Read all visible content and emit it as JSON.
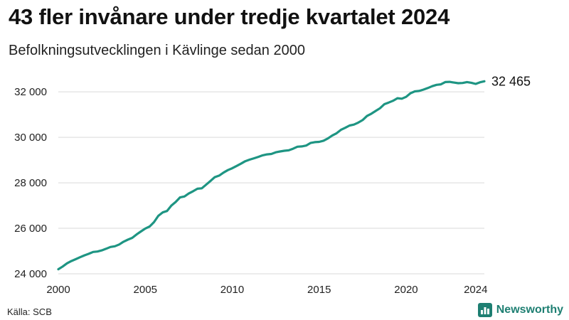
{
  "header": {
    "title": "43 fler invånare under tredje kvartalet 2024",
    "subtitle": "Befolkningsutvecklingen i Kävlinge sedan 2000"
  },
  "footer": {
    "source": "Källa: SCB",
    "brand": "Newsworthy"
  },
  "colors": {
    "line": "#1e9583",
    "grid": "#d9d9d9",
    "brand": "#1e7f72"
  },
  "chart_data": {
    "type": "line",
    "title": "43 fler invånare under tredje kvartalet 2024",
    "subtitle": "Befolkningsutvecklingen i Kävlinge sedan 2000",
    "xlabel": "",
    "ylabel": "",
    "xlim": [
      2000,
      2024.5
    ],
    "ylim": [
      24000,
      32600
    ],
    "grid": "horizontal",
    "x_ticks": [
      2000,
      2005,
      2010,
      2015,
      2020,
      2024
    ],
    "y_ticks": [
      24000,
      26000,
      28000,
      30000,
      32000
    ],
    "y_tick_labels": [
      "24 000",
      "26 000",
      "28 000",
      "30 000",
      "32 000"
    ],
    "end_label": "32 465",
    "series": [
      {
        "x": [
          2000.0,
          2000.25,
          2000.5,
          2000.75,
          2001.0,
          2001.25,
          2001.5,
          2001.75,
          2002.0,
          2002.25,
          2002.5,
          2002.75,
          2003.0,
          2003.25,
          2003.5,
          2003.75,
          2004.0,
          2004.25,
          2004.5,
          2004.75,
          2005.0,
          2005.25,
          2005.5,
          2005.75,
          2006.0,
          2006.25,
          2006.5,
          2006.75,
          2007.0,
          2007.25,
          2007.5,
          2007.75,
          2008.0,
          2008.25,
          2008.5,
          2008.75,
          2009.0,
          2009.25,
          2009.5,
          2009.75,
          2010.0,
          2010.25,
          2010.5,
          2010.75,
          2011.0,
          2011.25,
          2011.5,
          2011.75,
          2012.0,
          2012.25,
          2012.5,
          2012.75,
          2013.0,
          2013.25,
          2013.5,
          2013.75,
          2014.0,
          2014.25,
          2014.5,
          2014.75,
          2015.0,
          2015.25,
          2015.5,
          2015.75,
          2016.0,
          2016.25,
          2016.5,
          2016.75,
          2017.0,
          2017.25,
          2017.5,
          2017.75,
          2018.0,
          2018.25,
          2018.5,
          2018.75,
          2019.0,
          2019.25,
          2019.5,
          2019.75,
          2020.0,
          2020.25,
          2020.5,
          2020.75,
          2021.0,
          2021.25,
          2021.5,
          2021.75,
          2022.0,
          2022.25,
          2022.5,
          2022.75,
          2023.0,
          2023.25,
          2023.5,
          2023.75,
          2024.0,
          2024.25,
          2024.5
        ],
        "values": [
          24200,
          24320,
          24460,
          24560,
          24640,
          24730,
          24810,
          24880,
          24960,
          24980,
          25030,
          25100,
          25180,
          25210,
          25290,
          25410,
          25500,
          25580,
          25730,
          25860,
          25990,
          26080,
          26270,
          26550,
          26700,
          26760,
          27000,
          27160,
          27360,
          27400,
          27530,
          27630,
          27740,
          27760,
          27920,
          28080,
          28250,
          28320,
          28450,
          28560,
          28640,
          28740,
          28840,
          28950,
          29020,
          29080,
          29140,
          29210,
          29250,
          29270,
          29340,
          29380,
          29410,
          29430,
          29500,
          29590,
          29600,
          29640,
          29750,
          29790,
          29800,
          29850,
          29950,
          30080,
          30180,
          30330,
          30420,
          30520,
          30560,
          30650,
          30760,
          30940,
          31040,
          31160,
          31280,
          31460,
          31530,
          31610,
          31720,
          31700,
          31780,
          31940,
          32020,
          32040,
          32100,
          32170,
          32250,
          32310,
          32330,
          32430,
          32440,
          32410,
          32380,
          32390,
          32430,
          32400,
          32350,
          32422,
          32465
        ]
      }
    ]
  }
}
